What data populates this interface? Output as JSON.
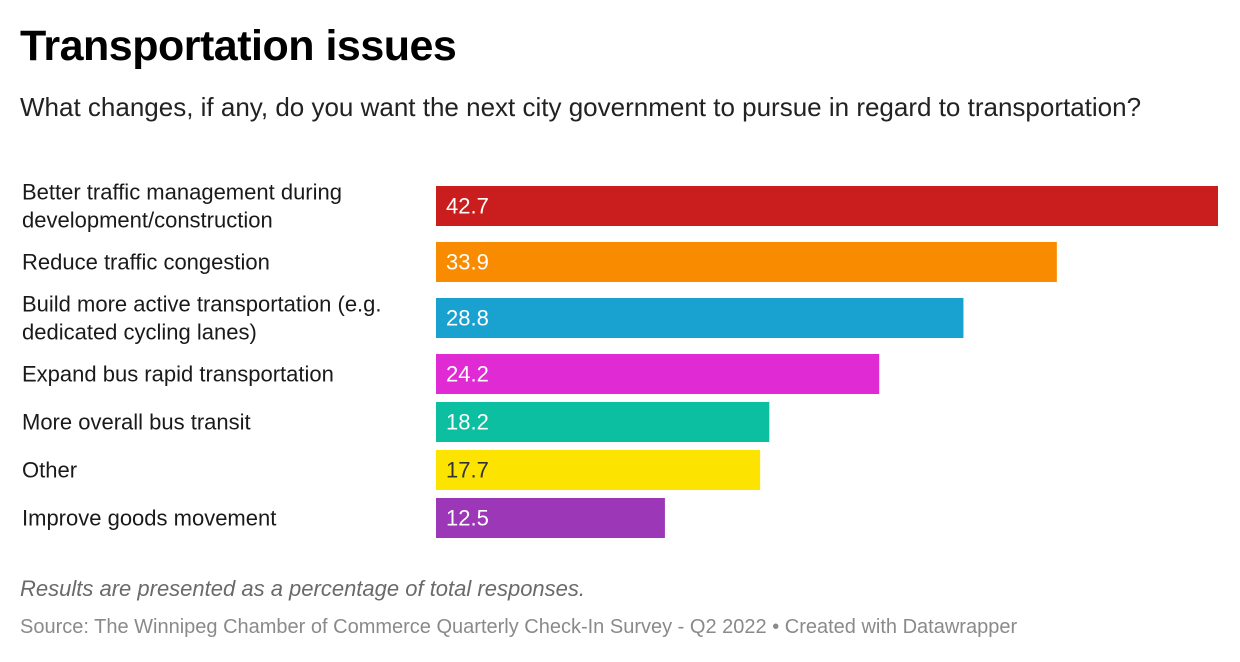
{
  "title": "Transportation issues",
  "subtitle": "What changes, if any, do you want the next city government to pursue in regard to transportation?",
  "footnote": "Results are presented as a percentage of total responses.",
  "source": {
    "text": "Source: The Winnipeg Chamber of Commerce Quarterly Check-In Survey - Q2 2022",
    "separator": "•",
    "credit": "Created with Datawrapper"
  },
  "chart_data": {
    "type": "bar",
    "orientation": "horizontal",
    "categories": [
      "Better traffic management during development/construction",
      "Reduce traffic congestion",
      "Build more active transportation (e.g. dedicated cycling lanes)",
      "Expand bus rapid transportation",
      "More overall bus transit",
      "Other",
      "Improve goods movement"
    ],
    "category_lines": [
      [
        "Better traffic management during",
        "development/construction"
      ],
      [
        "Reduce traffic congestion"
      ],
      [
        "Build more active transportation (e.g.",
        "dedicated cycling lanes)"
      ],
      [
        "Expand bus rapid transportation"
      ],
      [
        "More overall bus transit"
      ],
      [
        "Other"
      ],
      [
        "Improve goods movement"
      ]
    ],
    "values": [
      42.7,
      33.9,
      28.8,
      24.2,
      18.2,
      17.7,
      12.5
    ],
    "value_labels": [
      "42.7",
      "33.9",
      "28.8",
      "24.2",
      "18.2",
      "17.7",
      "12.5"
    ],
    "colors": [
      "#c91d1e",
      "#f88b00",
      "#19a2cf",
      "#e02ad4",
      "#0bbfa0",
      "#fde400",
      "#9c37b7"
    ],
    "label_colors": [
      "#ffffff",
      "#ffffff",
      "#ffffff",
      "#ffffff",
      "#ffffff",
      "#333333",
      "#ffffff"
    ],
    "xlim": [
      0,
      42.7
    ],
    "grid": false,
    "legend": "none"
  }
}
